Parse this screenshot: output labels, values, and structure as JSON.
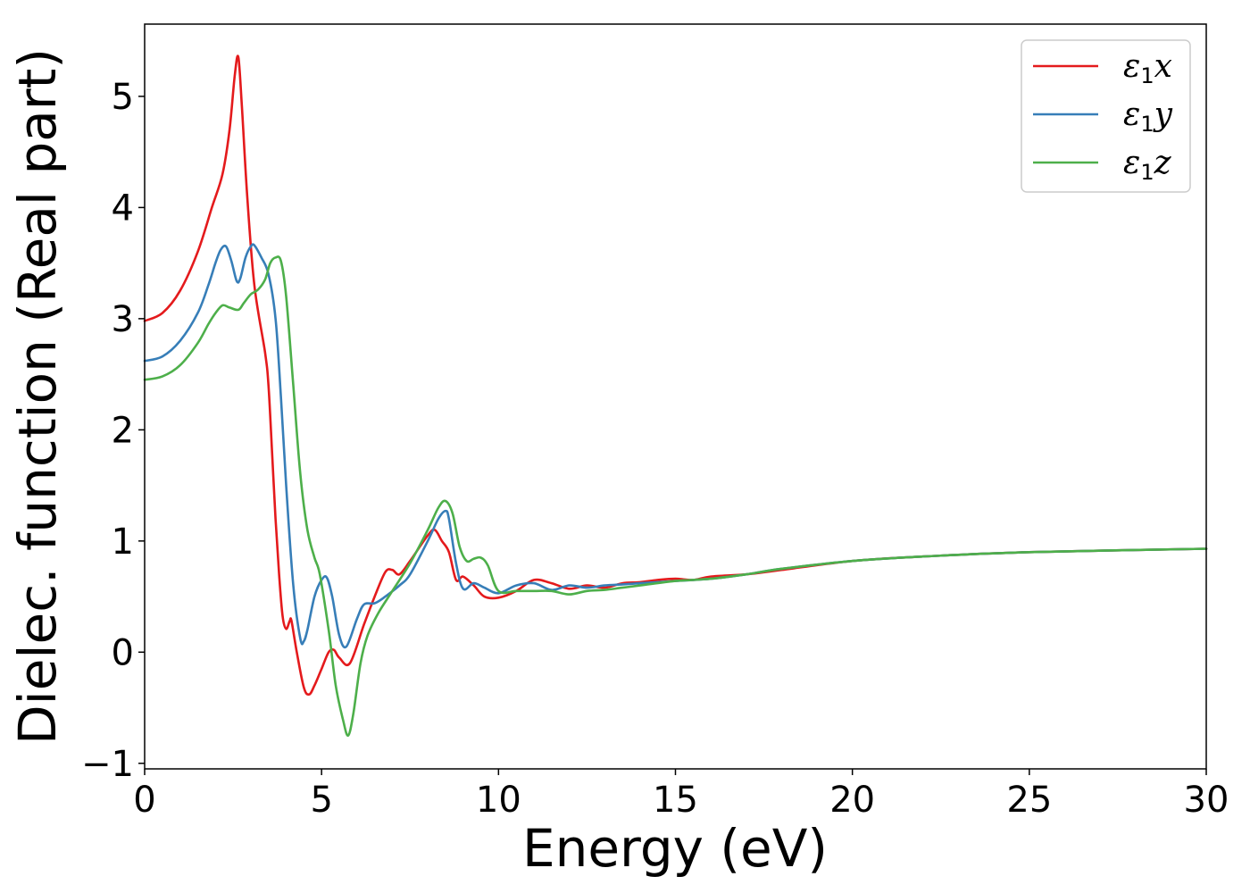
{
  "chart_data": {
    "type": "line",
    "title": "",
    "xlabel": "Energy (eV)",
    "ylabel": "Dielec. function (Real part)",
    "xlim": [
      0,
      30
    ],
    "ylim": [
      -1.05,
      5.65
    ],
    "xticks": [
      0,
      5,
      10,
      15,
      20,
      25,
      30
    ],
    "yticks": [
      -1,
      0,
      1,
      2,
      3,
      4,
      5
    ],
    "xtick_labels": [
      "0",
      "5",
      "10",
      "15",
      "20",
      "25",
      "30"
    ],
    "ytick_labels": [
      "−1",
      "0",
      "1",
      "2",
      "3",
      "4",
      "5"
    ],
    "grid": false,
    "legend_position": "top-right",
    "series": [
      {
        "name": "ε1x",
        "label_main": "ε",
        "label_sub": "1",
        "label_var": "x",
        "color": "#e41a1c",
        "x": [
          0,
          0.5,
          1.0,
          1.5,
          1.9,
          2.2,
          2.4,
          2.55,
          2.65,
          2.75,
          2.9,
          3.1,
          3.4,
          3.5,
          3.6,
          3.7,
          3.8,
          3.9,
          4.0,
          4.1,
          4.15,
          4.3,
          4.5,
          4.65,
          4.8,
          5.0,
          5.2,
          5.35,
          5.5,
          5.8,
          6.2,
          6.5,
          6.8,
          7.0,
          7.2,
          7.5,
          8.0,
          8.2,
          8.4,
          8.6,
          8.8,
          9.0,
          9.3,
          9.6,
          10.0,
          10.5,
          11.0,
          11.5,
          12.0,
          12.5,
          13.0,
          13.5,
          14.0,
          14.5,
          15.0,
          15.5,
          16.0,
          17.0,
          18.0,
          20.0,
          22.0,
          25.0,
          30.0
        ],
        "y": [
          2.98,
          3.05,
          3.25,
          3.6,
          4.0,
          4.3,
          4.7,
          5.2,
          5.35,
          4.9,
          4.1,
          3.3,
          2.7,
          2.4,
          1.8,
          1.2,
          0.7,
          0.32,
          0.21,
          0.28,
          0.28,
          0.0,
          -0.32,
          -0.38,
          -0.3,
          -0.15,
          0.0,
          0.02,
          -0.05,
          -0.1,
          0.25,
          0.5,
          0.72,
          0.74,
          0.7,
          0.82,
          1.05,
          1.1,
          1.0,
          0.9,
          0.65,
          0.68,
          0.6,
          0.5,
          0.49,
          0.55,
          0.65,
          0.62,
          0.57,
          0.6,
          0.58,
          0.62,
          0.63,
          0.65,
          0.66,
          0.65,
          0.68,
          0.7,
          0.74,
          0.82,
          0.86,
          0.9,
          0.93
        ]
      },
      {
        "name": "ε1y",
        "label_main": "ε",
        "label_sub": "1",
        "label_var": "y",
        "color": "#377eb8",
        "x": [
          0,
          0.5,
          1.0,
          1.5,
          1.8,
          2.0,
          2.15,
          2.3,
          2.45,
          2.6,
          2.7,
          2.85,
          3.0,
          3.1,
          3.3,
          3.5,
          3.7,
          3.85,
          4.0,
          4.2,
          4.4,
          4.5,
          4.6,
          4.8,
          5.0,
          5.15,
          5.3,
          5.5,
          5.7,
          6.0,
          6.2,
          6.5,
          6.8,
          7.2,
          7.5,
          8.0,
          8.3,
          8.5,
          8.6,
          8.8,
          9.0,
          9.3,
          9.6,
          10.0,
          10.5,
          11.0,
          11.5,
          12.0,
          12.5,
          13.0,
          13.5,
          14.0,
          15.0,
          16.0,
          17.0,
          18.0,
          20.0,
          22.0,
          25.0,
          30.0
        ],
        "y": [
          2.62,
          2.66,
          2.8,
          3.05,
          3.3,
          3.5,
          3.62,
          3.65,
          3.52,
          3.34,
          3.36,
          3.55,
          3.65,
          3.66,
          3.55,
          3.4,
          3.0,
          2.3,
          1.5,
          0.6,
          0.12,
          0.1,
          0.2,
          0.5,
          0.65,
          0.67,
          0.5,
          0.15,
          0.05,
          0.3,
          0.43,
          0.44,
          0.5,
          0.6,
          0.7,
          1.0,
          1.2,
          1.27,
          1.2,
          0.8,
          0.57,
          0.62,
          0.58,
          0.53,
          0.6,
          0.62,
          0.56,
          0.6,
          0.58,
          0.6,
          0.61,
          0.62,
          0.64,
          0.66,
          0.7,
          0.75,
          0.82,
          0.86,
          0.9,
          0.93
        ]
      },
      {
        "name": "ε1z",
        "label_main": "ε",
        "label_sub": "1",
        "label_var": "z",
        "color": "#4daf4a",
        "x": [
          0,
          0.5,
          1.0,
          1.5,
          1.8,
          2.0,
          2.2,
          2.4,
          2.65,
          2.8,
          3.0,
          3.2,
          3.4,
          3.55,
          3.7,
          3.85,
          4.0,
          4.2,
          4.4,
          4.6,
          4.8,
          4.95,
          5.2,
          5.4,
          5.6,
          5.75,
          5.9,
          6.1,
          6.3,
          6.6,
          7.0,
          7.5,
          8.0,
          8.3,
          8.5,
          8.7,
          8.9,
          9.1,
          9.3,
          9.5,
          9.7,
          10.0,
          10.5,
          11.0,
          11.5,
          12.0,
          12.5,
          13.0,
          13.5,
          14.0,
          15.0,
          16.0,
          17.0,
          18.0,
          20.0,
          22.0,
          25.0,
          30.0
        ],
        "y": [
          2.45,
          2.48,
          2.58,
          2.78,
          2.95,
          3.05,
          3.12,
          3.1,
          3.08,
          3.14,
          3.22,
          3.26,
          3.35,
          3.5,
          3.55,
          3.52,
          3.2,
          2.4,
          1.6,
          1.1,
          0.85,
          0.7,
          0.2,
          -0.3,
          -0.6,
          -0.75,
          -0.55,
          -0.1,
          0.15,
          0.35,
          0.55,
          0.8,
          1.1,
          1.3,
          1.36,
          1.25,
          0.95,
          0.82,
          0.84,
          0.85,
          0.78,
          0.55,
          0.55,
          0.55,
          0.55,
          0.52,
          0.55,
          0.56,
          0.58,
          0.6,
          0.64,
          0.66,
          0.7,
          0.75,
          0.82,
          0.86,
          0.9,
          0.93
        ]
      }
    ]
  }
}
